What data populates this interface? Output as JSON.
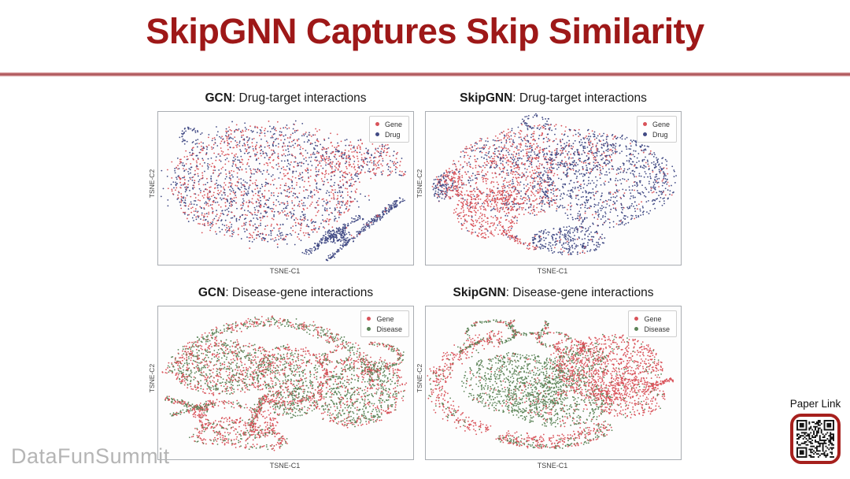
{
  "slide": {
    "title": "SkipGNN Captures Skip Similarity",
    "title_color": "#9E1818",
    "divider_color": "#B25C5C",
    "watermark": "DataFunSummit",
    "watermark_color": "#B5B5B5",
    "paper_link_label": "Paper Link",
    "qr_border_color": "#A6201D"
  },
  "chart_data": [
    {
      "type": "scatter",
      "title_model": "GCN",
      "title_rest": ": Drug-target interactions",
      "xlabel": "TSNE-C1",
      "ylabel": "TSNE-C2",
      "grid": false,
      "ticks": "none",
      "legend_position": "top-right-inside",
      "legend": [
        {
          "name": "Gene",
          "color": "#d9535a"
        },
        {
          "name": "Drug",
          "color": "#424b85"
        }
      ],
      "clusters": [
        {
          "shape": "blob",
          "cx": 0.42,
          "cy": 0.47,
          "rx": 0.37,
          "ry": 0.38,
          "n": 1500,
          "mix": {
            "Gene": 0.47,
            "Drug": 0.53
          }
        },
        {
          "shape": "blob",
          "cx": 0.43,
          "cy": 0.47,
          "rx": 0.43,
          "ry": 0.43,
          "n": 330,
          "mix": {
            "Gene": 0.5,
            "Drug": 0.5
          }
        },
        {
          "shape": "blob",
          "cx": 0.76,
          "cy": 0.29,
          "rx": 0.14,
          "ry": 0.12,
          "n": 170,
          "mix": {
            "Gene": 0.72,
            "Drug": 0.28
          }
        },
        {
          "shape": "blob",
          "cx": 0.88,
          "cy": 0.32,
          "rx": 0.08,
          "ry": 0.11,
          "n": 90,
          "mix": {
            "Gene": 0.55,
            "Drug": 0.45
          }
        },
        {
          "shape": "band",
          "x1": 0.57,
          "y1": 0.93,
          "x2": 0.8,
          "y2": 0.68,
          "th": 0.022,
          "n": 130,
          "mix": {
            "Drug": 1
          }
        },
        {
          "shape": "band",
          "x1": 0.66,
          "y1": 0.97,
          "x2": 0.93,
          "y2": 0.6,
          "th": 0.018,
          "n": 150,
          "mix": {
            "Drug": 0.97,
            "Gene": 0.03
          }
        },
        {
          "shape": "blob",
          "cx": 0.7,
          "cy": 0.81,
          "rx": 0.055,
          "ry": 0.05,
          "n": 120,
          "mix": {
            "Drug": 1
          }
        },
        {
          "shape": "band",
          "x1": 0.8,
          "y1": 0.76,
          "x2": 0.96,
          "y2": 0.57,
          "th": 0.02,
          "n": 80,
          "mix": {
            "Drug": 0.95,
            "Gene": 0.05
          }
        },
        {
          "shape": "ring",
          "cx": 0.125,
          "cy": 0.155,
          "rx": 0.035,
          "ry": 0.05,
          "a0": 0,
          "a1": 360,
          "th": 0.008,
          "n": 40,
          "mix": {
            "Drug": 1
          }
        },
        {
          "shape": "blob",
          "cx": 0.96,
          "cy": 0.4,
          "rx": 0.02,
          "ry": 0.018,
          "n": 9,
          "mix": {
            "Drug": 0.6,
            "Gene": 0.4
          }
        }
      ]
    },
    {
      "type": "scatter",
      "title_model": "SkipGNN",
      "title_rest": ": Drug-target interactions",
      "xlabel": "TSNE-C1",
      "ylabel": "TSNE-C2",
      "grid": false,
      "ticks": "none",
      "legend_position": "top-right-inside",
      "legend": [
        {
          "name": "Gene",
          "color": "#d9535a"
        },
        {
          "name": "Drug",
          "color": "#424b85"
        }
      ],
      "clusters": [
        {
          "shape": "blob",
          "cx": 0.3,
          "cy": 0.4,
          "rx": 0.21,
          "ry": 0.25,
          "n": 520,
          "mix": {
            "Gene": 0.7,
            "Drug": 0.3
          }
        },
        {
          "shape": "blob",
          "cx": 0.24,
          "cy": 0.66,
          "rx": 0.13,
          "ry": 0.17,
          "n": 340,
          "mix": {
            "Gene": 0.9,
            "Drug": 0.1
          }
        },
        {
          "shape": "blob",
          "cx": 0.48,
          "cy": 0.26,
          "rx": 0.27,
          "ry": 0.18,
          "n": 520,
          "mix": {
            "Gene": 0.45,
            "Drug": 0.55
          }
        },
        {
          "shape": "blob",
          "cx": 0.7,
          "cy": 0.45,
          "rx": 0.25,
          "ry": 0.31,
          "n": 820,
          "mix": {
            "Drug": 0.88,
            "Gene": 0.12
          }
        },
        {
          "shape": "blob",
          "cx": 0.4,
          "cy": 0.55,
          "rx": 0.12,
          "ry": 0.13,
          "n": 200,
          "mix": {
            "Gene": 0.62,
            "Drug": 0.38
          }
        },
        {
          "shape": "blob",
          "cx": 0.56,
          "cy": 0.84,
          "rx": 0.145,
          "ry": 0.095,
          "n": 280,
          "mix": {
            "Drug": 0.95,
            "Gene": 0.05
          }
        },
        {
          "shape": "ring",
          "cx": 0.43,
          "cy": 0.065,
          "rx": 0.045,
          "ry": 0.04,
          "a0": 0,
          "a1": 360,
          "th": 0.008,
          "n": 45,
          "mix": {
            "Drug": 0.9,
            "Gene": 0.1
          }
        },
        {
          "shape": "blob",
          "cx": 0.1,
          "cy": 0.47,
          "rx": 0.05,
          "ry": 0.1,
          "n": 150,
          "mix": {
            "Gene": 0.75,
            "Drug": 0.25
          }
        },
        {
          "shape": "blob",
          "cx": 0.055,
          "cy": 0.5,
          "rx": 0.03,
          "ry": 0.09,
          "n": 70,
          "mix": {
            "Drug": 0.8,
            "Gene": 0.2
          }
        },
        {
          "shape": "blob",
          "cx": 0.93,
          "cy": 0.46,
          "rx": 0.055,
          "ry": 0.16,
          "n": 70,
          "mix": {
            "Drug": 0.9,
            "Gene": 0.1
          }
        },
        {
          "shape": "band",
          "x1": 0.3,
          "y1": 0.78,
          "x2": 0.43,
          "y2": 0.9,
          "th": 0.02,
          "n": 70,
          "mix": {
            "Gene": 0.85,
            "Drug": 0.15
          }
        }
      ]
    },
    {
      "type": "scatter",
      "title_model": "GCN",
      "title_rest": ": Disease-gene interactions",
      "xlabel": "TSNE-C1",
      "ylabel": "TSNE-C2",
      "grid": false,
      "ticks": "none",
      "legend_position": "top-right-inside",
      "legend": [
        {
          "name": "Gene",
          "color": "#d9535a"
        },
        {
          "name": "Disease",
          "color": "#5c8458"
        }
      ],
      "clusters": [
        {
          "shape": "ring",
          "cx": 0.44,
          "cy": 0.62,
          "rx": 0.42,
          "ry": 0.52,
          "a0": 200,
          "a1": 340,
          "th": 0.022,
          "n": 520,
          "mix": {
            "Gene": 0.42,
            "Disease": 0.58
          }
        },
        {
          "shape": "ring",
          "cx": 0.82,
          "cy": 0.33,
          "rx": 0.13,
          "ry": 0.09,
          "a0": 270,
          "a1": 450,
          "th": 0.01,
          "n": 130,
          "mix": {
            "Gene": 0.45,
            "Disease": 0.55
          }
        },
        {
          "shape": "ring",
          "cx": 0.7,
          "cy": 0.33,
          "rx": 0.05,
          "ry": 0.035,
          "a0": 0,
          "a1": 280,
          "th": 0.008,
          "n": 60,
          "mix": {
            "Gene": 0.5,
            "Disease": 0.5
          }
        },
        {
          "shape": "blob",
          "cx": 0.26,
          "cy": 0.4,
          "rx": 0.185,
          "ry": 0.155,
          "rot": -12,
          "n": 650,
          "mix": {
            "Gene": 0.46,
            "Disease": 0.54
          }
        },
        {
          "shape": "ring",
          "cx": 0.26,
          "cy": 0.4,
          "rx": 0.195,
          "ry": 0.165,
          "rot": -12,
          "a0": 0,
          "a1": 360,
          "th": 0.012,
          "n": 170,
          "mix": {
            "Gene": 0.8,
            "Disease": 0.2
          }
        },
        {
          "shape": "blob",
          "cx": 0.5,
          "cy": 0.45,
          "rx": 0.13,
          "ry": 0.15,
          "n": 380,
          "mix": {
            "Gene": 0.4,
            "Disease": 0.6
          }
        },
        {
          "shape": "ring",
          "cx": 0.5,
          "cy": 0.45,
          "rx": 0.16,
          "ry": 0.18,
          "a0": 250,
          "a1": 480,
          "th": 0.012,
          "n": 200,
          "mix": {
            "Gene": 0.85,
            "Disease": 0.15
          }
        },
        {
          "shape": "blob",
          "cx": 0.79,
          "cy": 0.56,
          "rx": 0.155,
          "ry": 0.21,
          "rot": 15,
          "n": 680,
          "mix": {
            "Gene": 0.34,
            "Disease": 0.66
          }
        },
        {
          "shape": "ring",
          "cx": 0.79,
          "cy": 0.56,
          "rx": 0.165,
          "ry": 0.22,
          "rot": 15,
          "a0": 0,
          "a1": 360,
          "th": 0.012,
          "n": 150,
          "mix": {
            "Gene": 0.72,
            "Disease": 0.28
          }
        },
        {
          "shape": "ring",
          "cx": 0.3,
          "cy": 0.74,
          "rx": 0.155,
          "ry": 0.095,
          "rot": 25,
          "a0": 0,
          "a1": 360,
          "th": 0.018,
          "n": 240,
          "mix": {
            "Gene": 0.8,
            "Disease": 0.2
          }
        },
        {
          "shape": "ring",
          "cx": 0.26,
          "cy": 0.82,
          "rx": 0.115,
          "ry": 0.065,
          "rot": -15,
          "a0": 0,
          "a1": 360,
          "th": 0.015,
          "n": 170,
          "mix": {
            "Gene": 0.75,
            "Disease": 0.25
          }
        },
        {
          "shape": "ring",
          "cx": 0.36,
          "cy": 0.86,
          "rx": 0.13,
          "ry": 0.06,
          "rot": 10,
          "a0": 0,
          "a1": 360,
          "th": 0.015,
          "n": 150,
          "mix": {
            "Gene": 0.7,
            "Disease": 0.3
          }
        },
        {
          "shape": "band",
          "x1": 0.03,
          "y1": 0.6,
          "x2": 0.2,
          "y2": 0.68,
          "th": 0.02,
          "n": 110,
          "mix": {
            "Gene": 0.5,
            "Disease": 0.5
          }
        },
        {
          "shape": "band",
          "x1": 0.05,
          "y1": 0.71,
          "x2": 0.22,
          "y2": 0.63,
          "th": 0.012,
          "n": 70,
          "mix": {
            "Disease": 0.7,
            "Gene": 0.3
          }
        },
        {
          "shape": "band",
          "x1": 0.42,
          "y1": 0.58,
          "x2": 0.36,
          "y2": 0.78,
          "th": 0.02,
          "n": 120,
          "mix": {
            "Gene": 0.6,
            "Disease": 0.4
          }
        },
        {
          "shape": "blob",
          "cx": 0.53,
          "cy": 0.63,
          "rx": 0.1,
          "ry": 0.1,
          "n": 200,
          "mix": {
            "Disease": 0.72,
            "Gene": 0.28
          }
        }
      ]
    },
    {
      "type": "scatter",
      "title_model": "SkipGNN",
      "title_rest": ": Disease-gene interactions",
      "xlabel": "TSNE-C1",
      "ylabel": "TSNE-C2",
      "grid": false,
      "ticks": "none",
      "legend_position": "top-right-inside",
      "legend": [
        {
          "name": "Gene",
          "color": "#d9535a"
        },
        {
          "name": "Disease",
          "color": "#5c8458"
        }
      ],
      "clusters": [
        {
          "shape": "blob",
          "cx": 0.36,
          "cy": 0.5,
          "rx": 0.22,
          "ry": 0.2,
          "n": 800,
          "mix": {
            "Disease": 0.88,
            "Gene": 0.12
          }
        },
        {
          "shape": "blob",
          "cx": 0.52,
          "cy": 0.62,
          "rx": 0.21,
          "ry": 0.17,
          "n": 560,
          "mix": {
            "Disease": 0.78,
            "Gene": 0.22
          }
        },
        {
          "shape": "blob",
          "cx": 0.72,
          "cy": 0.4,
          "rx": 0.21,
          "ry": 0.22,
          "n": 850,
          "mix": {
            "Gene": 0.92,
            "Disease": 0.08
          }
        },
        {
          "shape": "blob",
          "cx": 0.8,
          "cy": 0.6,
          "rx": 0.14,
          "ry": 0.13,
          "n": 300,
          "mix": {
            "Gene": 0.9,
            "Disease": 0.1
          }
        },
        {
          "shape": "blob",
          "cx": 0.6,
          "cy": 0.36,
          "rx": 0.12,
          "ry": 0.11,
          "n": 240,
          "mix": {
            "Disease": 0.5,
            "Gene": 0.5
          }
        },
        {
          "shape": "band",
          "x1": 0.88,
          "y1": 0.53,
          "x2": 0.97,
          "y2": 0.47,
          "th": 0.02,
          "n": 60,
          "mix": {
            "Gene": 1
          }
        },
        {
          "shape": "ring",
          "cx": 0.4,
          "cy": 0.52,
          "rx": 0.36,
          "ry": 0.33,
          "a0": 115,
          "a1": 255,
          "th": 0.03,
          "n": 380,
          "mix": {
            "Gene": 0.8,
            "Disease": 0.2
          }
        },
        {
          "shape": "ring",
          "cx": 0.45,
          "cy": 0.48,
          "rx": 0.38,
          "ry": 0.4,
          "a0": 45,
          "a1": 115,
          "th": 0.025,
          "n": 230,
          "mix": {
            "Gene": 0.72,
            "Disease": 0.28
          }
        },
        {
          "shape": "ring",
          "cx": 0.48,
          "cy": 0.42,
          "rx": 0.4,
          "ry": 0.5,
          "a0": 55,
          "a1": 120,
          "th": 0.008,
          "n": 130,
          "mix": {
            "Disease": 0.55,
            "Gene": 0.45
          }
        },
        {
          "shape": "ring",
          "cx": 0.255,
          "cy": 0.17,
          "rx": 0.095,
          "ry": 0.075,
          "a0": 150,
          "a1": 430,
          "th": 0.006,
          "n": 110,
          "mix": {
            "Disease": 0.75,
            "Gene": 0.25
          }
        },
        {
          "shape": "ring",
          "cx": 0.4,
          "cy": 0.125,
          "rx": 0.075,
          "ry": 0.055,
          "a0": -30,
          "a1": 230,
          "th": 0.006,
          "n": 90,
          "mix": {
            "Disease": 0.7,
            "Gene": 0.3
          }
        },
        {
          "shape": "band",
          "x1": 0.13,
          "y1": 0.3,
          "x2": 0.23,
          "y2": 0.21,
          "th": 0.008,
          "n": 50,
          "mix": {
            "Disease": 0.7,
            "Gene": 0.3
          }
        },
        {
          "shape": "ring",
          "cx": 0.5,
          "cy": 0.215,
          "rx": 0.06,
          "ry": 0.045,
          "a0": 90,
          "a1": 360,
          "th": 0.006,
          "n": 70,
          "mix": {
            "Disease": 0.6,
            "Gene": 0.4
          }
        },
        {
          "shape": "ring",
          "cx": 0.565,
          "cy": 0.26,
          "rx": 0.055,
          "ry": 0.035,
          "a0": 120,
          "a1": 420,
          "th": 0.007,
          "n": 70,
          "mix": {
            "Gene": 0.9,
            "Disease": 0.1
          }
        }
      ]
    }
  ]
}
